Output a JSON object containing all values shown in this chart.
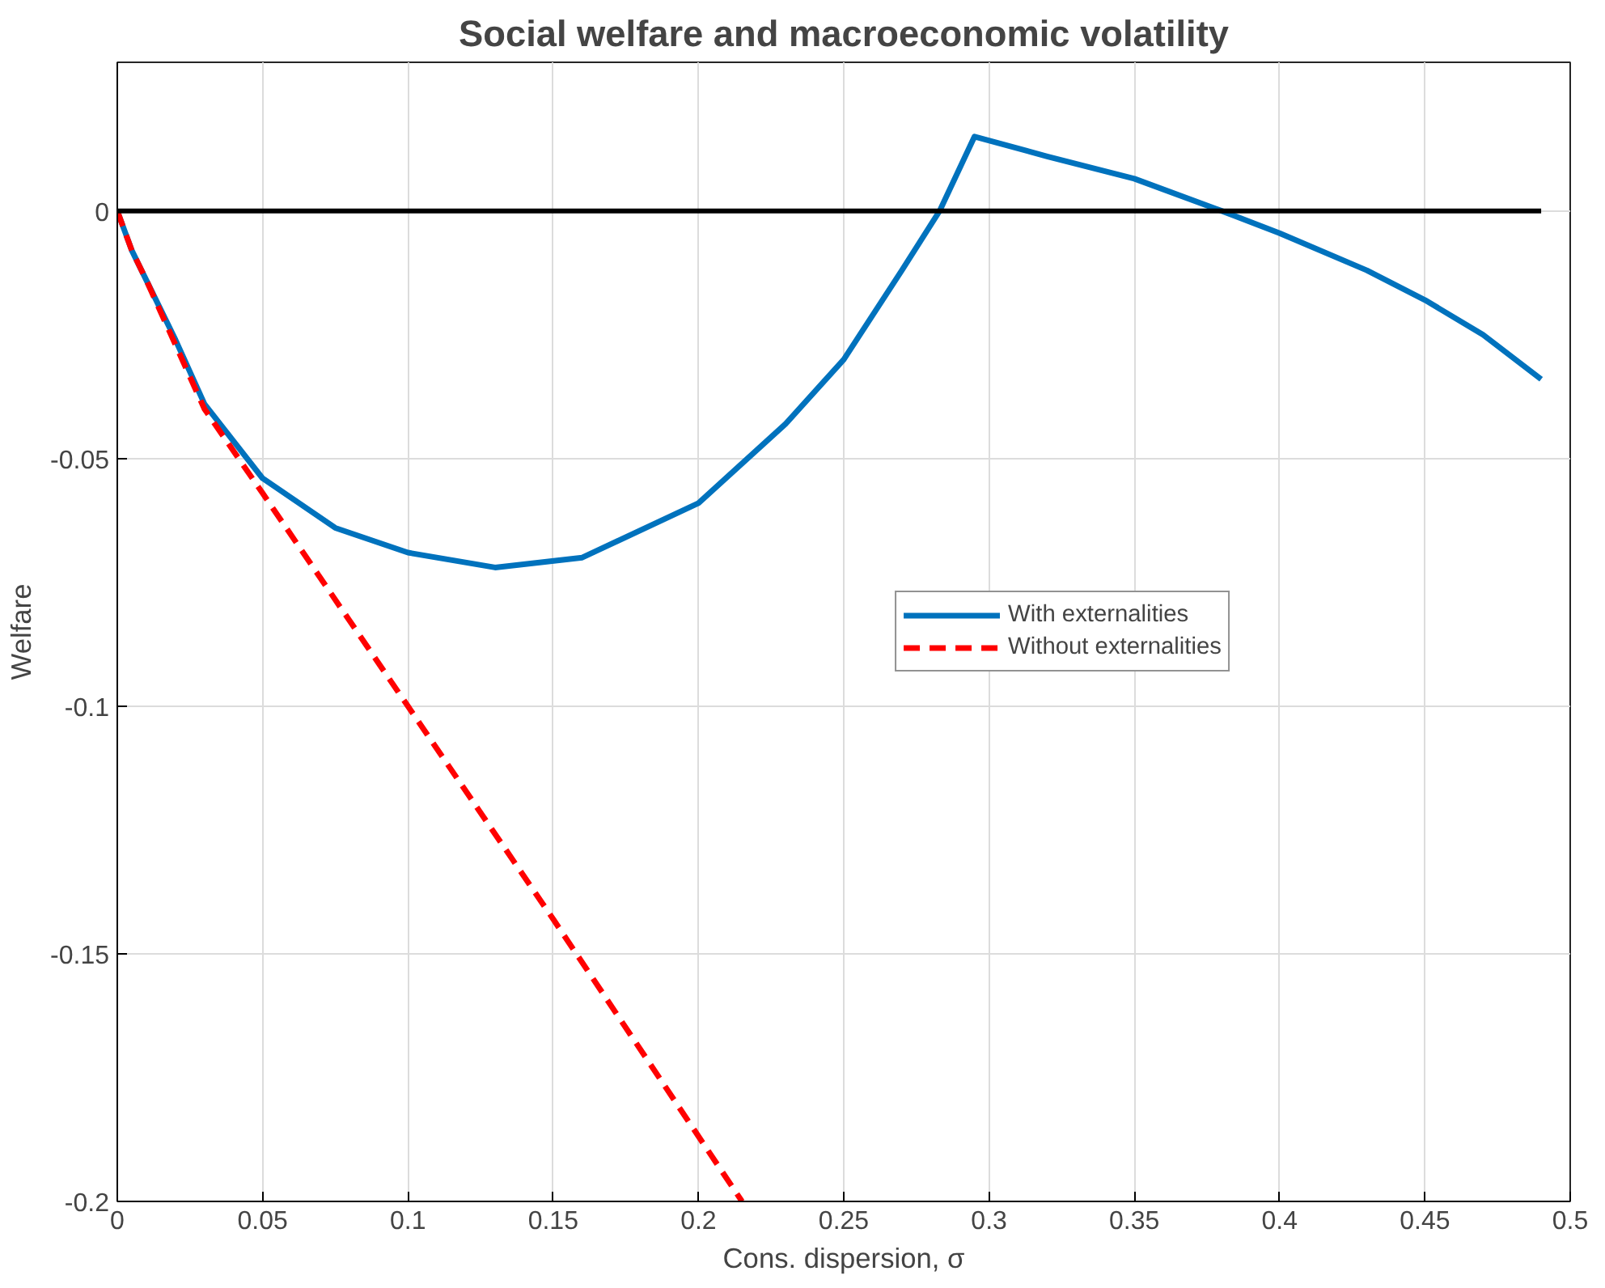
{
  "chart_data": {
    "type": "line",
    "title": "Social welfare and macroeconomic volatility",
    "xlabel": "Cons. dispersion, σ",
    "ylabel": "Welfare",
    "xlim": [
      0,
      0.5
    ],
    "ylim": [
      -0.2,
      0.03
    ],
    "xticks": [
      0,
      0.05,
      0.1,
      0.15,
      0.2,
      0.25,
      0.3,
      0.35,
      0.4,
      0.45,
      0.5
    ],
    "yticks": [
      -0.2,
      -0.15,
      -0.1,
      -0.05,
      0
    ],
    "grid": true,
    "legend": "right",
    "line_style": "solid",
    "series": [
      {
        "name": "With externalities",
        "color": "#0072bd",
        "x": [
          0,
          0.005,
          0.01,
          0.02,
          0.03,
          0.05,
          0.075,
          0.1,
          0.13,
          0.16,
          0.2,
          0.23,
          0.25,
          0.27,
          0.283,
          0.295,
          0.32,
          0.35,
          0.38,
          0.4,
          0.43,
          0.45,
          0.47,
          0.49
        ],
        "values": [
          0,
          -0.008,
          -0.014,
          -0.026,
          -0.039,
          -0.054,
          -0.064,
          -0.069,
          -0.072,
          -0.07,
          -0.059,
          -0.043,
          -0.03,
          -0.012,
          0,
          0.015,
          0.011,
          0.0065,
          0,
          -0.0045,
          -0.012,
          -0.018,
          -0.025,
          -0.034
        ]
      },
      {
        "name": "Without externalities",
        "color": "#ff0000",
        "line_style": "dashed",
        "x": [
          0,
          0.005,
          0.01,
          0.02,
          0.03,
          0.05,
          0.1,
          0.15,
          0.215
        ],
        "values": [
          0,
          -0.008,
          -0.014,
          -0.027,
          -0.04,
          -0.057,
          -0.1,
          -0.143,
          -0.2
        ]
      },
      {
        "color": "#000000",
        "x": [
          0,
          0.49
        ],
        "values": [
          0,
          0
        ]
      }
    ]
  }
}
